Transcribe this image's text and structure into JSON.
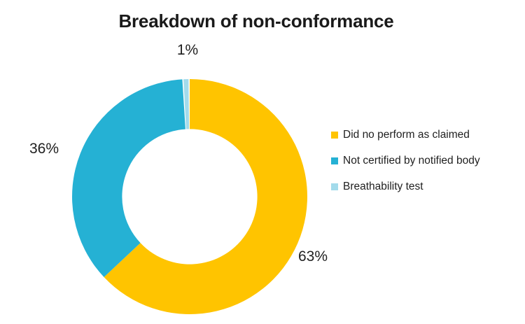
{
  "page": {
    "background": "#FFFFFF"
  },
  "chart_data": {
    "type": "pie",
    "subtype": "donut",
    "title": "Breakdown of non-conformance",
    "categories": [
      "Did no perform as claimed",
      "Not certified by notified body",
      "Breathability test"
    ],
    "values": [
      63,
      36,
      1
    ],
    "unit": "%",
    "display_labels": [
      "63%",
      "36%",
      "1%"
    ],
    "colors": [
      "#FFC400",
      "#25B1D4",
      "#A3DBEB"
    ],
    "legend_position": "right",
    "direction": "clockwise",
    "start_angle_deg": 0,
    "donut_hole_ratio": 0.575,
    "title_color": "#1A1A1A",
    "label_color": "#1F1F1F"
  }
}
